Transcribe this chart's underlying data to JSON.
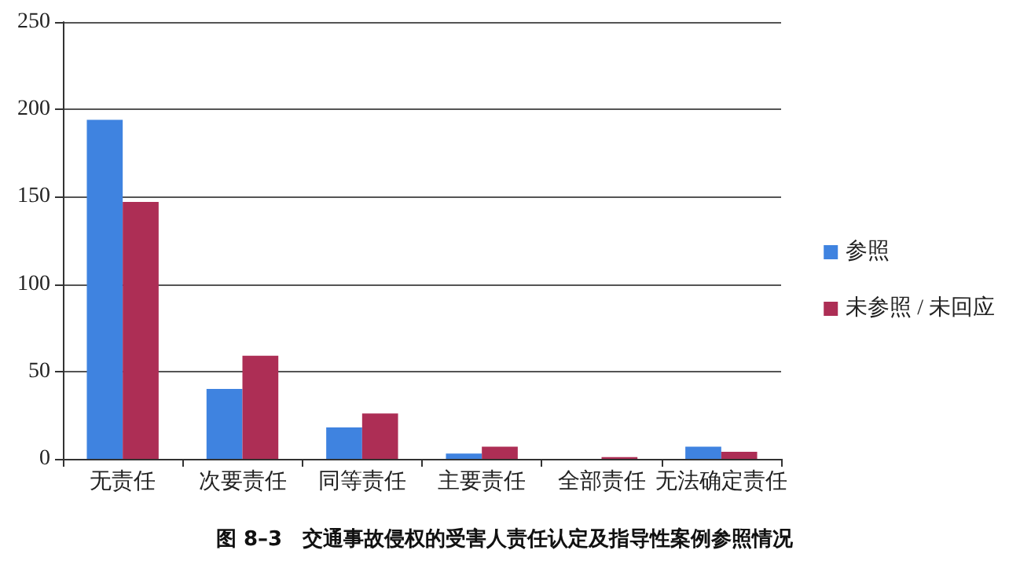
{
  "chart_data": {
    "type": "bar",
    "title": "图 8–3　交通事故侵权的受害人责任认定及指导性案例参照情况",
    "categories": [
      "无责任",
      "次要责任",
      "同等责任",
      "主要责任",
      "全部责任",
      "无法确定责任"
    ],
    "series": [
      {
        "name": "参照",
        "color": "#3f83e0",
        "values": [
          194,
          40,
          18,
          3,
          0,
          7
        ]
      },
      {
        "name": "未参照 / 未回应",
        "color": "#ad2e55",
        "values": [
          147,
          59,
          26,
          7,
          1,
          4
        ]
      }
    ],
    "ylim": [
      0,
      250
    ],
    "yticks": [
      0,
      50,
      100,
      150,
      200,
      250
    ],
    "grid": "y",
    "legend": "right"
  }
}
